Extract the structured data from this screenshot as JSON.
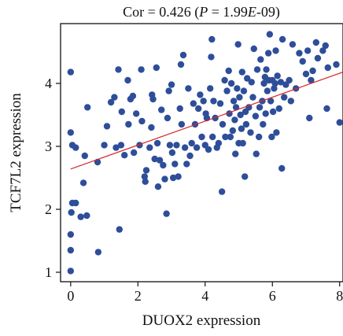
{
  "chart_data": {
    "type": "scatter",
    "title": {
      "prefix": "Cor = 0.426 (",
      "p_symbol": "P",
      "middle": " = 1.99",
      "e_symbol": "E",
      "suffix": "-09)"
    },
    "xlabel": "DUOX2 expression",
    "ylabel": "TCF7L2 expression",
    "xlim": [
      -0.3,
      8.1
    ],
    "ylim": [
      0.85,
      4.95
    ],
    "xticks": [
      0,
      2,
      4,
      6,
      8
    ],
    "yticks": [
      1,
      2,
      3,
      4
    ],
    "grid": false,
    "colors": {
      "points": "#2e4e9a",
      "trendline": "#d62728"
    },
    "trendline": {
      "x": [
        0,
        8.1
      ],
      "y": [
        2.64,
        4.18
      ]
    },
    "points": [
      [
        0.0,
        1.02
      ],
      [
        0.0,
        1.35
      ],
      [
        0.0,
        1.6
      ],
      [
        0.02,
        1.95
      ],
      [
        0.05,
        2.1
      ],
      [
        0.15,
        2.1
      ],
      [
        0.3,
        1.88
      ],
      [
        0.48,
        1.9
      ],
      [
        0.82,
        1.32
      ],
      [
        1.45,
        1.68
      ],
      [
        0.0,
        4.18
      ],
      [
        0.0,
        3.22
      ],
      [
        0.05,
        3.02
      ],
      [
        0.15,
        2.98
      ],
      [
        0.42,
        2.85
      ],
      [
        0.38,
        2.42
      ],
      [
        0.5,
        3.62
      ],
      [
        0.8,
        2.75
      ],
      [
        1.0,
        3.02
      ],
      [
        1.08,
        3.32
      ],
      [
        1.2,
        3.7
      ],
      [
        1.3,
        3.78
      ],
      [
        1.35,
        2.98
      ],
      [
        1.42,
        4.22
      ],
      [
        1.5,
        3.02
      ],
      [
        1.52,
        3.55
      ],
      [
        1.6,
        2.86
      ],
      [
        1.7,
        4.05
      ],
      [
        1.72,
        3.35
      ],
      [
        1.78,
        3.75
      ],
      [
        1.85,
        3.8
      ],
      [
        1.88,
        2.9
      ],
      [
        1.95,
        3.52
      ],
      [
        2.05,
        3.02
      ],
      [
        2.1,
        4.22
      ],
      [
        2.12,
        3.4
      ],
      [
        2.2,
        2.52
      ],
      [
        2.22,
        2.44
      ],
      [
        2.25,
        2.62
      ],
      [
        2.35,
        2.98
      ],
      [
        2.4,
        3.3
      ],
      [
        2.42,
        3.82
      ],
      [
        2.45,
        3.75
      ],
      [
        2.5,
        2.8
      ],
      [
        2.55,
        4.25
      ],
      [
        2.58,
        3.05
      ],
      [
        2.6,
        2.36
      ],
      [
        2.65,
        2.78
      ],
      [
        2.7,
        3.58
      ],
      [
        2.75,
        2.7
      ],
      [
        2.8,
        2.48
      ],
      [
        2.85,
        1.93
      ],
      [
        2.88,
        3.45
      ],
      [
        2.92,
        3.88
      ],
      [
        2.95,
        3.02
      ],
      [
        3.0,
        3.98
      ],
      [
        3.02,
        2.9
      ],
      [
        3.05,
        2.5
      ],
      [
        3.1,
        2.72
      ],
      [
        3.15,
        3.02
      ],
      [
        3.2,
        2.52
      ],
      [
        3.25,
        3.6
      ],
      [
        3.28,
        4.3
      ],
      [
        3.3,
        3.35
      ],
      [
        3.35,
        4.45
      ],
      [
        3.4,
        2.98
      ],
      [
        3.45,
        2.72
      ],
      [
        3.5,
        3.92
      ],
      [
        3.55,
        2.85
      ],
      [
        3.6,
        3.05
      ],
      [
        3.65,
        3.68
      ],
      [
        3.7,
        3.35
      ],
      [
        3.75,
        2.98
      ],
      [
        3.8,
        3.6
      ],
      [
        3.85,
        3.82
      ],
      [
        3.9,
        3.15
      ],
      [
        3.95,
        3.72
      ],
      [
        4.0,
        3.02
      ],
      [
        4.02,
        3.52
      ],
      [
        4.05,
        3.45
      ],
      [
        4.1,
        2.95
      ],
      [
        4.15,
        3.92
      ],
      [
        4.18,
        4.42
      ],
      [
        4.2,
        4.7
      ],
      [
        4.22,
        3.15
      ],
      [
        4.25,
        3.72
      ],
      [
        4.3,
        3.45
      ],
      [
        4.35,
        2.98
      ],
      [
        4.4,
        3.05
      ],
      [
        4.45,
        3.68
      ],
      [
        4.5,
        2.28
      ],
      [
        4.52,
        3.35
      ],
      [
        4.58,
        4.05
      ],
      [
        4.6,
        3.15
      ],
      [
        4.65,
        3.88
      ],
      [
        4.7,
        4.2
      ],
      [
        4.72,
        3.52
      ],
      [
        4.75,
        3.15
      ],
      [
        4.78,
        4.0
      ],
      [
        4.82,
        3.25
      ],
      [
        4.85,
        3.72
      ],
      [
        4.88,
        3.42
      ],
      [
        4.9,
        2.88
      ],
      [
        4.92,
        3.62
      ],
      [
        4.95,
        3.92
      ],
      [
        4.98,
        4.62
      ],
      [
        5.0,
        3.05
      ],
      [
        5.02,
        3.78
      ],
      [
        5.05,
        3.5
      ],
      [
        5.08,
        3.28
      ],
      [
        5.1,
        4.18
      ],
      [
        5.12,
        3.05
      ],
      [
        5.15,
        3.88
      ],
      [
        5.18,
        2.52
      ],
      [
        5.2,
        3.55
      ],
      [
        5.22,
        3.35
      ],
      [
        5.25,
        4.08
      ],
      [
        5.3,
        3.62
      ],
      [
        5.35,
        3.22
      ],
      [
        5.38,
        4.02
      ],
      [
        5.42,
        3.78
      ],
      [
        5.45,
        4.55
      ],
      [
        5.5,
        3.48
      ],
      [
        5.52,
        2.88
      ],
      [
        5.55,
        4.22
      ],
      [
        5.6,
        3.15
      ],
      [
        5.62,
        3.62
      ],
      [
        5.65,
        4.38
      ],
      [
        5.7,
        3.72
      ],
      [
        5.72,
        3.35
      ],
      [
        5.75,
        4.0
      ],
      [
        5.78,
        4.1
      ],
      [
        5.8,
        3.52
      ],
      [
        5.82,
        4.22
      ],
      [
        5.85,
        3.88
      ],
      [
        5.88,
        4.48
      ],
      [
        5.9,
        4.05
      ],
      [
        5.92,
        4.78
      ],
      [
        5.95,
        3.72
      ],
      [
        5.98,
        3.15
      ],
      [
        6.0,
        4.05
      ],
      [
        6.02,
        3.55
      ],
      [
        6.05,
        3.92
      ],
      [
        6.08,
        4.0
      ],
      [
        6.1,
        4.52
      ],
      [
        6.12,
        3.22
      ],
      [
        6.15,
        4.12
      ],
      [
        6.2,
        3.6
      ],
      [
        6.25,
        4.02
      ],
      [
        6.28,
        2.65
      ],
      [
        6.3,
        4.7
      ],
      [
        6.35,
        3.78
      ],
      [
        6.4,
        3.98
      ],
      [
        6.5,
        4.05
      ],
      [
        6.55,
        3.72
      ],
      [
        6.6,
        4.62
      ],
      [
        6.7,
        3.92
      ],
      [
        6.8,
        4.48
      ],
      [
        6.9,
        4.35
      ],
      [
        7.0,
        4.15
      ],
      [
        7.05,
        4.52
      ],
      [
        7.1,
        3.45
      ],
      [
        7.15,
        4.05
      ],
      [
        7.2,
        4.2
      ],
      [
        7.3,
        4.65
      ],
      [
        7.35,
        4.4
      ],
      [
        7.5,
        4.52
      ],
      [
        7.58,
        4.6
      ],
      [
        7.62,
        3.6
      ],
      [
        7.65,
        4.25
      ],
      [
        7.9,
        4.3
      ],
      [
        8.0,
        3.38
      ]
    ]
  }
}
